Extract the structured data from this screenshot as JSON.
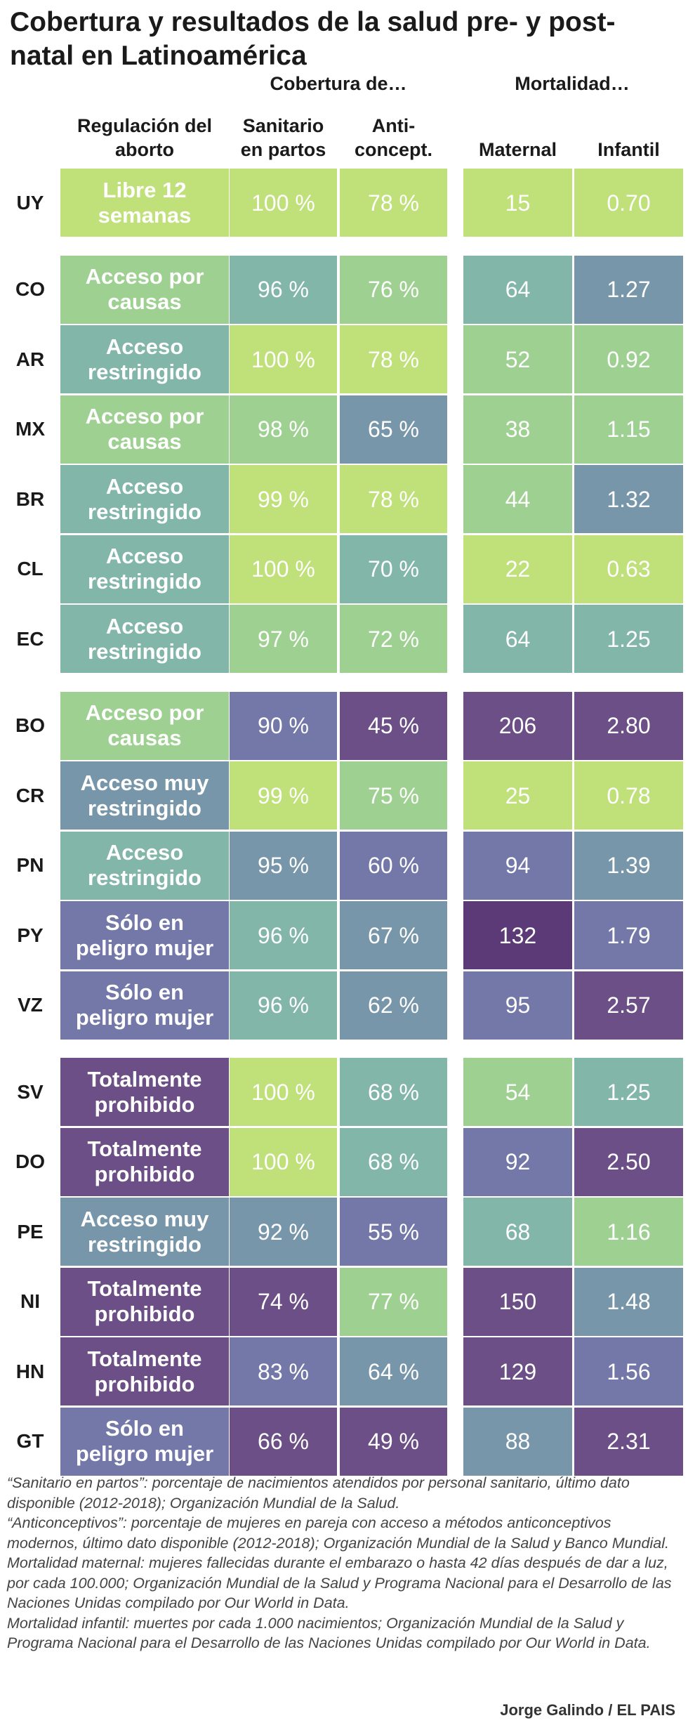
{
  "title": "Cobertura y resultados de la salud pre- y post-natal en Latinoamérica",
  "headers": {
    "group_coverage": "Cobertura de…",
    "group_mortality": "Mortalidad…",
    "regulation": "Regulación del aborto",
    "births": "Sanitario en partos",
    "contraception": "Anti- concept.",
    "maternal": "Maternal",
    "infant": "Infantil"
  },
  "colors": {
    "lime": "#c0e07a",
    "light_green": "#9ed191",
    "teal": "#82b6a8",
    "slate": "#7896a9",
    "blue_purple": "#7378a9",
    "purple": "#6b4f86",
    "dark_purple": "#5c3a78"
  },
  "chart_data": {
    "type": "table",
    "title": "Cobertura y resultados de la salud pre- y post-natal en Latinoamérica",
    "columns": [
      "Regulación del aborto",
      "Sanitario en partos",
      "Anti- concept.",
      "Maternal",
      "Infantil"
    ],
    "groups": [
      {
        "rows": [
          {
            "country": "UY",
            "regulation": "Libre 12 semanas",
            "births": "100 %",
            "contraception": "78 %",
            "maternal": "15",
            "infant": "0.70",
            "colors": [
              "lime",
              "lime",
              "lime",
              "lime",
              "lime"
            ]
          }
        ]
      },
      {
        "rows": [
          {
            "country": "CO",
            "regulation": "Acceso por causas",
            "births": "96 %",
            "contraception": "76 %",
            "maternal": "64",
            "infant": "1.27",
            "colors": [
              "light_green",
              "teal",
              "light_green",
              "teal",
              "slate"
            ]
          },
          {
            "country": "AR",
            "regulation": "Acceso restringido",
            "births": "100 %",
            "contraception": "78 %",
            "maternal": "52",
            "infant": "0.92",
            "colors": [
              "teal",
              "lime",
              "lime",
              "light_green",
              "light_green"
            ]
          },
          {
            "country": "MX",
            "regulation": "Acceso por causas",
            "births": "98 %",
            "contraception": "65 %",
            "maternal": "38",
            "infant": "1.15",
            "colors": [
              "light_green",
              "light_green",
              "slate",
              "light_green",
              "light_green"
            ]
          },
          {
            "country": "BR",
            "regulation": "Acceso restringido",
            "births": "99 %",
            "contraception": "78 %",
            "maternal": "44",
            "infant": "1.32",
            "colors": [
              "teal",
              "lime",
              "lime",
              "light_green",
              "slate"
            ]
          },
          {
            "country": "CL",
            "regulation": "Acceso restringido",
            "births": "100 %",
            "contraception": "70 %",
            "maternal": "22",
            "infant": "0.63",
            "colors": [
              "teal",
              "lime",
              "teal",
              "lime",
              "lime"
            ]
          },
          {
            "country": "EC",
            "regulation": "Acceso restringido",
            "births": "97 %",
            "contraception": "72 %",
            "maternal": "64",
            "infant": "1.25",
            "colors": [
              "teal",
              "light_green",
              "light_green",
              "teal",
              "teal"
            ]
          }
        ]
      },
      {
        "rows": [
          {
            "country": "BO",
            "regulation": "Acceso por causas",
            "births": "90 %",
            "contraception": "45 %",
            "maternal": "206",
            "infant": "2.80",
            "colors": [
              "light_green",
              "blue_purple",
              "purple",
              "purple",
              "purple"
            ]
          },
          {
            "country": "CR",
            "regulation": "Acceso muy restringido",
            "births": "99 %",
            "contraception": "75 %",
            "maternal": "25",
            "infant": "0.78",
            "colors": [
              "slate",
              "lime",
              "light_green",
              "lime",
              "lime"
            ]
          },
          {
            "country": "PN",
            "regulation": "Acceso restringido",
            "births": "95 %",
            "contraception": "60 %",
            "maternal": "94",
            "infant": "1.39",
            "colors": [
              "teal",
              "slate",
              "blue_purple",
              "blue_purple",
              "slate"
            ]
          },
          {
            "country": "PY",
            "regulation": "Sólo en peligro mujer",
            "births": "96 %",
            "contraception": "67 %",
            "maternal": "132",
            "infant": "1.79",
            "colors": [
              "blue_purple",
              "teal",
              "slate",
              "dark_purple",
              "blue_purple"
            ]
          },
          {
            "country": "VZ",
            "regulation": "Sólo en peligro mujer",
            "births": "96 %",
            "contraception": "62 %",
            "maternal": "95",
            "infant": "2.57",
            "colors": [
              "blue_purple",
              "teal",
              "slate",
              "blue_purple",
              "purple"
            ]
          }
        ]
      },
      {
        "rows": [
          {
            "country": "SV",
            "regulation": "Totalmente prohibido",
            "births": "100 %",
            "contraception": "68 %",
            "maternal": "54",
            "infant": "1.25",
            "colors": [
              "purple",
              "lime",
              "teal",
              "light_green",
              "teal"
            ]
          },
          {
            "country": "DO",
            "regulation": "Totalmente prohibido",
            "births": "100 %",
            "contraception": "68 %",
            "maternal": "92",
            "infant": "2.50",
            "colors": [
              "purple",
              "lime",
              "teal",
              "blue_purple",
              "purple"
            ]
          },
          {
            "country": "PE",
            "regulation": "Acceso muy restringido",
            "births": "92 %",
            "contraception": "55 %",
            "maternal": "68",
            "infant": "1.16",
            "colors": [
              "slate",
              "slate",
              "blue_purple",
              "teal",
              "light_green"
            ]
          },
          {
            "country": "NI",
            "regulation": "Totalmente prohibido",
            "births": "74 %",
            "contraception": "77 %",
            "maternal": "150",
            "infant": "1.48",
            "colors": [
              "purple",
              "purple",
              "light_green",
              "purple",
              "slate"
            ]
          },
          {
            "country": "HN",
            "regulation": "Totalmente prohibido",
            "births": "83 %",
            "contraception": "64 %",
            "maternal": "129",
            "infant": "1.56",
            "colors": [
              "purple",
              "blue_purple",
              "slate",
              "purple",
              "blue_purple"
            ]
          },
          {
            "country": "GT",
            "regulation": "Sólo en peligro mujer",
            "births": "66 %",
            "contraception": "49 %",
            "maternal": "88",
            "infant": "2.31",
            "colors": [
              "blue_purple",
              "purple",
              "purple",
              "slate",
              "purple"
            ]
          }
        ]
      }
    ]
  },
  "notes": [
    "“Sanitario en partos”: porcentaje de nacimientos atendidos por personal sanitario, último dato disponible (2012-2018); Organización Mundial de la Salud.",
    "“Anticonceptivos”: porcentaje de mujeres en pareja con acceso a métodos anticonceptivos modernos, último dato disponible (2012-2018); Organización Mundial de la Salud y Banco Mundial.",
    "Mortalidad maternal: mujeres fallecidas durante el embarazo o hasta 42 días después de dar a luz, por cada 100.000; Organización Mundial de la Salud y Programa Nacional para el Desarrollo de las Naciones Unidas compilado por Our World in Data.",
    "Mortalidad infantil: muertes por cada 1.000 nacimientos; Organización Mundial de la Salud y Programa Nacional para el Desarrollo de las Naciones Unidas compilado por Our World in Data."
  ],
  "credit": "Jorge Galindo / EL PAIS"
}
